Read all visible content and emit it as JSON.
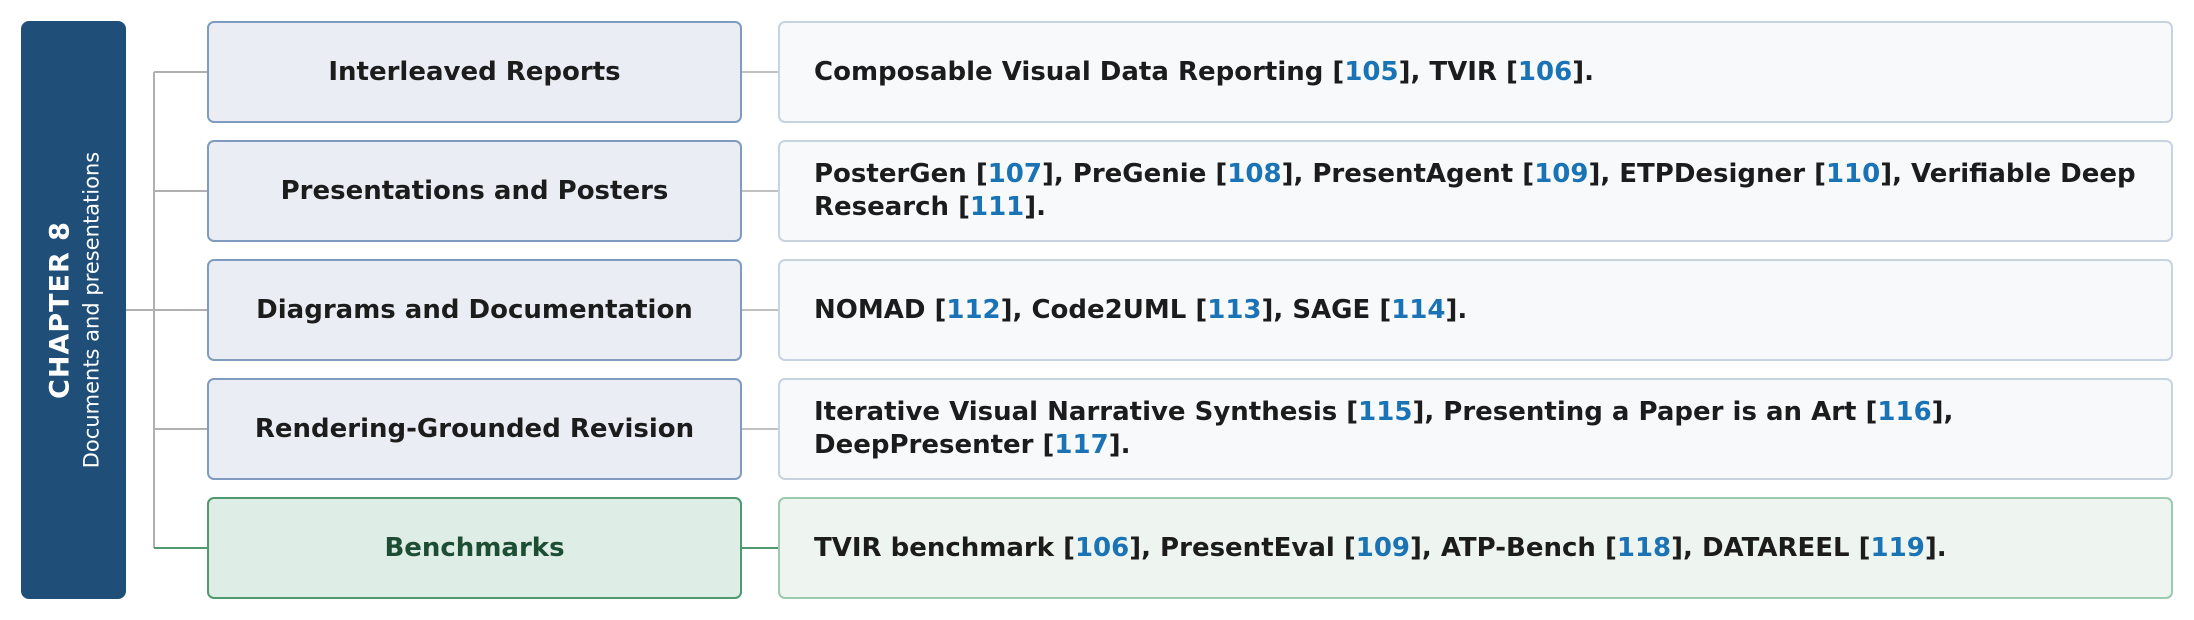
{
  "chapter": {
    "title": "CHAPTER 8",
    "subtitle": "Documents and presentations"
  },
  "rows": [
    {
      "category": "Interleaved Reports",
      "segments": [
        "Composable Visual Data Reporting [",
        "105",
        "], TVIR [",
        "106",
        "]."
      ]
    },
    {
      "category": "Presentations and Posters",
      "segments": [
        "PosterGen [",
        "107",
        "], PreGenie [",
        "108",
        "], PresentAgent [",
        "109",
        "], ETPDesigner [",
        "110",
        "], Verifiable Deep Research [",
        "111",
        "]."
      ]
    },
    {
      "category": "Diagrams and Documentation",
      "segments": [
        "NOMAD [",
        "112",
        "], Code2UML [",
        "113",
        "], SAGE [",
        "114",
        "]."
      ]
    },
    {
      "category": "Rendering-Grounded Revision",
      "segments": [
        "Iterative Visual Narrative Synthesis [",
        "115",
        "], Presenting a Paper is an Art [",
        "116",
        "], DeepPresenter [",
        "117",
        "]."
      ]
    },
    {
      "category": "Benchmarks",
      "segments": [
        "TVIR benchmark [",
        "106",
        "], PresentEval [",
        "109",
        "], ATP-Bench [",
        "118",
        "], DATAREEL [",
        "119",
        "]."
      ]
    }
  ]
}
